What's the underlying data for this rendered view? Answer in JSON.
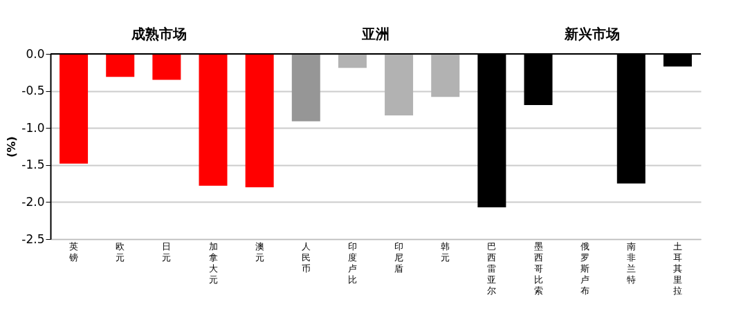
{
  "chart_data": {
    "type": "bar",
    "categories": [
      "英镑",
      "欧元",
      "日元",
      "加拿大元",
      "澳元",
      "人民币",
      "印度卢比",
      "印尼盾",
      "韩元",
      "巴西雷亚尔",
      "墨西哥比索",
      "俄罗斯卢布",
      "南非兰特",
      "土耳其里拉"
    ],
    "values": [
      -1.48,
      -0.31,
      -0.35,
      -1.78,
      -1.8,
      -0.91,
      -0.19,
      -0.83,
      -0.58,
      -2.07,
      -0.69,
      0,
      -1.75,
      -0.17
    ],
    "colors": [
      "#ff0000",
      "#ff0000",
      "#ff0000",
      "#ff0000",
      "#ff0000",
      "#969696",
      "#b2b2b2",
      "#b2b2b2",
      "#b2b2b2",
      "#000000",
      "#000000",
      "#000000",
      "#000000",
      "#000000"
    ],
    "ylabel": "(%)",
    "ylim": [
      -2.5,
      0
    ],
    "yticks": [
      {
        "value": 0,
        "label": "0.0"
      },
      {
        "value": -0.5,
        "label": "-0.5"
      },
      {
        "value": -1,
        "label": "-1.0"
      },
      {
        "value": -1.5,
        "label": "-1.5"
      },
      {
        "value": -2,
        "label": "-2.0"
      },
      {
        "value": -2.5,
        "label": "-2.5"
      }
    ],
    "grid": "y",
    "legend": false,
    "annotations": [
      "成熟市场",
      "亚洲",
      "新兴市场"
    ]
  }
}
